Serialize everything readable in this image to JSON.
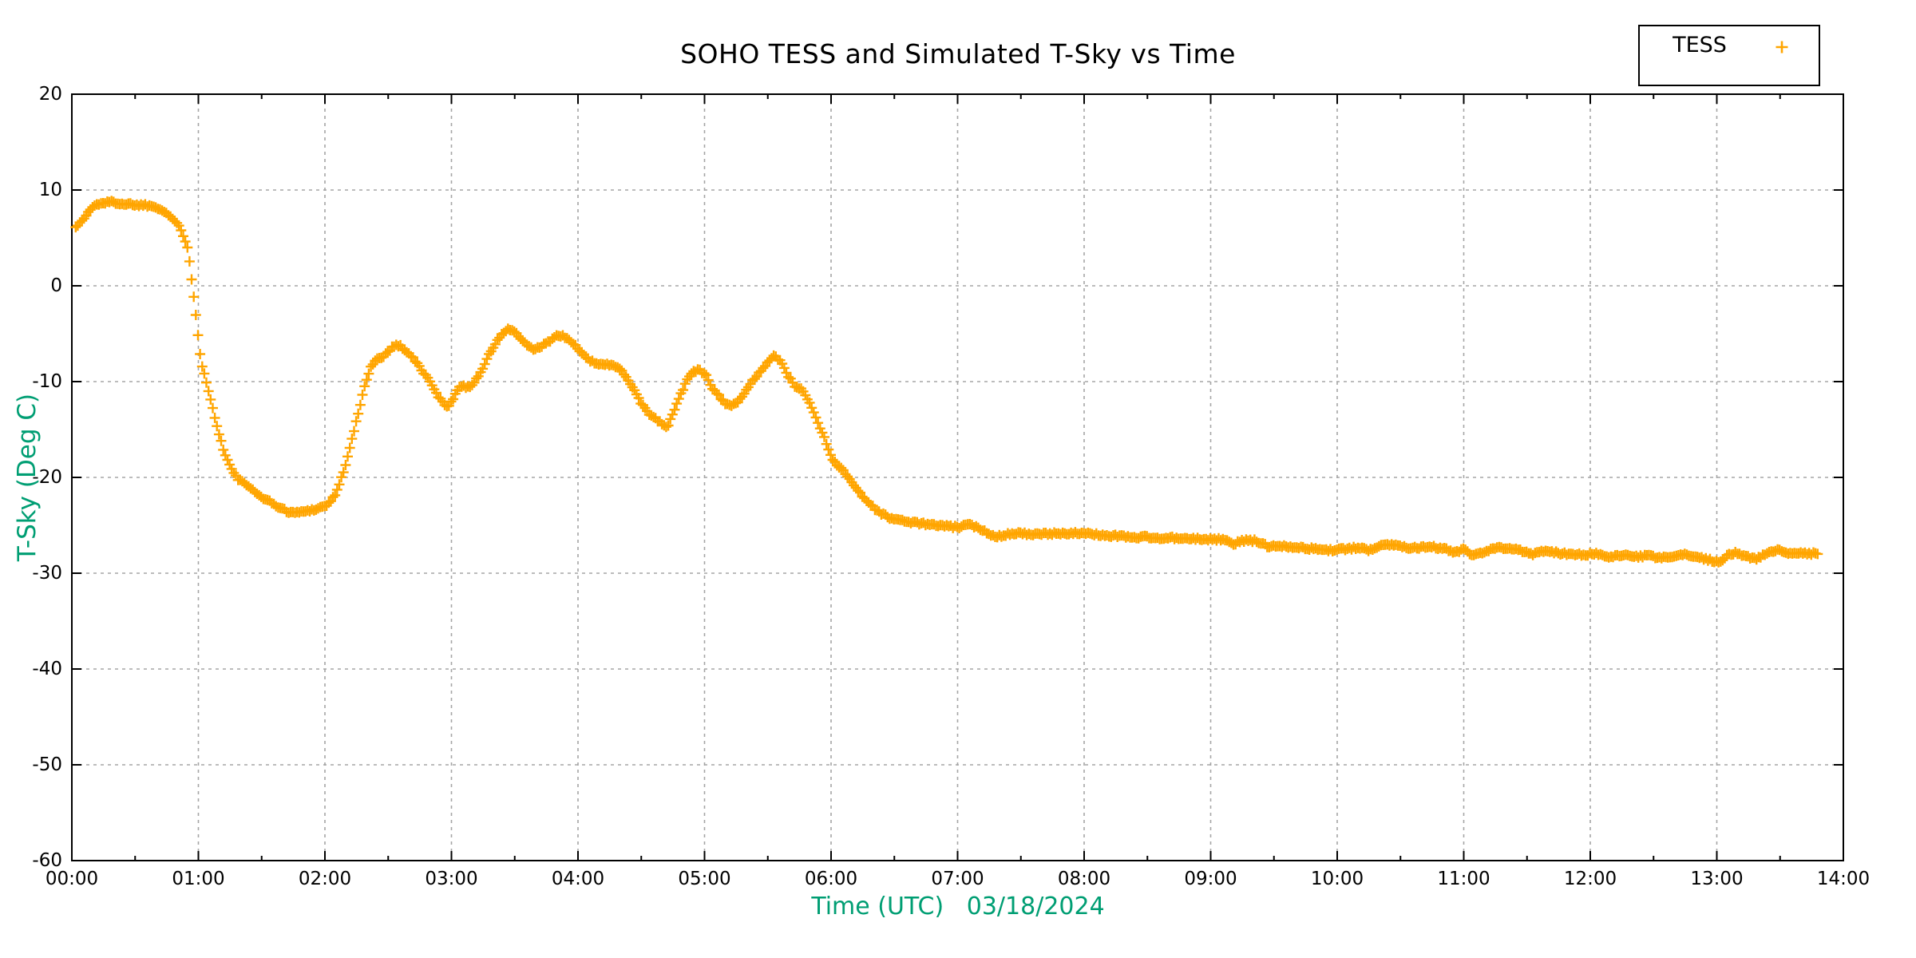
{
  "page": {
    "background": "#ffffff"
  },
  "chart": {
    "title": "SOHO TESS and Simulated T-Sky vs Time",
    "xlabel": "Time (UTC)   03/18/2024",
    "ylabel": "T-Sky (Deg C)",
    "legend": {
      "position": "top-right",
      "entries": [
        {
          "label": "TESS",
          "marker": "plus-icon",
          "color": "#FFA500"
        }
      ]
    },
    "colors": {
      "series": "#FFA500",
      "axis_labels": "#009E73",
      "grid": "#A5A5A5",
      "axis": "#000000",
      "tick_text": "#000000"
    }
  },
  "chart_data": {
    "type": "scatter",
    "title": "SOHO TESS and Simulated T-Sky vs Time",
    "xlabel": "Time (UTC)   03/18/2024",
    "ylabel": "T-Sky (Deg C)",
    "date_shown": "03/18/2024",
    "marker": "plus",
    "marker_color": "#FFA500",
    "grid": true,
    "legend_entries": [
      "TESS"
    ],
    "xlim_hours": [
      0,
      14
    ],
    "ylim": [
      -60,
      20
    ],
    "x_tick_labels": [
      "00:00",
      "01:00",
      "02:00",
      "03:00",
      "04:00",
      "05:00",
      "06:00",
      "07:00",
      "08:00",
      "09:00",
      "10:00",
      "11:00",
      "12:00",
      "13:00",
      "14:00"
    ],
    "x_minor_tick_every_hours": 0.5,
    "y_ticks": [
      20,
      10,
      0,
      -10,
      -20,
      -30,
      -40,
      -50,
      -60
    ],
    "sampling_minutes": 1,
    "scatter_jitter_degC": 0.13,
    "series": [
      {
        "name": "TESS",
        "color": "#FFA500",
        "keypoints_t_hours_v_degC": [
          [
            0.03,
            6.2
          ],
          [
            0.07,
            6.6
          ],
          [
            0.1,
            7.1
          ],
          [
            0.13,
            7.7
          ],
          [
            0.17,
            8.3
          ],
          [
            0.22,
            8.6
          ],
          [
            0.27,
            8.7
          ],
          [
            0.32,
            8.75
          ],
          [
            0.38,
            8.6
          ],
          [
            0.43,
            8.5
          ],
          [
            0.47,
            8.55
          ],
          [
            0.52,
            8.4
          ],
          [
            0.57,
            8.45
          ],
          [
            0.62,
            8.35
          ],
          [
            0.66,
            8.25
          ],
          [
            0.7,
            8.05
          ],
          [
            0.73,
            7.75
          ],
          [
            0.76,
            7.45
          ],
          [
            0.79,
            7.1
          ],
          [
            0.82,
            6.65
          ],
          [
            0.85,
            6.1
          ],
          [
            0.88,
            5.3
          ],
          [
            0.9,
            4.6
          ],
          [
            0.92,
            3.8
          ],
          [
            0.94,
            1.5
          ],
          [
            0.96,
            -0.7
          ],
          [
            0.98,
            -3.0
          ],
          [
            1.0,
            -5.5
          ],
          [
            1.02,
            -7.8
          ],
          [
            1.05,
            -9.4
          ],
          [
            1.08,
            -11.0
          ],
          [
            1.11,
            -12.6
          ],
          [
            1.14,
            -14.2
          ],
          [
            1.17,
            -15.8
          ],
          [
            1.2,
            -17.2
          ],
          [
            1.24,
            -18.5
          ],
          [
            1.28,
            -19.6
          ],
          [
            1.32,
            -20.3
          ],
          [
            1.36,
            -20.5
          ],
          [
            1.41,
            -21.2
          ],
          [
            1.46,
            -21.7
          ],
          [
            1.51,
            -22.1
          ],
          [
            1.56,
            -22.5
          ],
          [
            1.61,
            -22.9
          ],
          [
            1.66,
            -23.3
          ],
          [
            1.71,
            -23.55
          ],
          [
            1.76,
            -23.7
          ],
          [
            1.81,
            -23.6
          ],
          [
            1.86,
            -23.5
          ],
          [
            1.91,
            -23.35
          ],
          [
            1.96,
            -23.15
          ],
          [
            2.0,
            -23.0
          ],
          [
            2.04,
            -22.6
          ],
          [
            2.08,
            -21.8
          ],
          [
            2.12,
            -20.5
          ],
          [
            2.16,
            -18.8
          ],
          [
            2.2,
            -16.8
          ],
          [
            2.24,
            -14.6
          ],
          [
            2.28,
            -12.4
          ],
          [
            2.32,
            -10.2
          ],
          [
            2.36,
            -8.5
          ],
          [
            2.4,
            -7.7
          ],
          [
            2.45,
            -7.5
          ],
          [
            2.5,
            -6.8
          ],
          [
            2.55,
            -6.2
          ],
          [
            2.6,
            -6.3
          ],
          [
            2.65,
            -6.9
          ],
          [
            2.7,
            -7.6
          ],
          [
            2.76,
            -8.7
          ],
          [
            2.82,
            -9.8
          ],
          [
            2.88,
            -11.2
          ],
          [
            2.93,
            -12.2
          ],
          [
            2.97,
            -12.6
          ],
          [
            3.01,
            -11.8
          ],
          [
            3.05,
            -10.8
          ],
          [
            3.09,
            -10.4
          ],
          [
            3.13,
            -10.6
          ],
          [
            3.17,
            -10.3
          ],
          [
            3.21,
            -9.4
          ],
          [
            3.25,
            -8.5
          ],
          [
            3.29,
            -7.4
          ],
          [
            3.33,
            -6.4
          ],
          [
            3.37,
            -5.6
          ],
          [
            3.41,
            -4.9
          ],
          [
            3.45,
            -4.5
          ],
          [
            3.49,
            -4.7
          ],
          [
            3.54,
            -5.4
          ],
          [
            3.59,
            -6.2
          ],
          [
            3.64,
            -6.6
          ],
          [
            3.69,
            -6.5
          ],
          [
            3.74,
            -6.1
          ],
          [
            3.79,
            -5.6
          ],
          [
            3.84,
            -5.2
          ],
          [
            3.89,
            -5.3
          ],
          [
            3.94,
            -5.8
          ],
          [
            4.0,
            -6.5
          ],
          [
            4.05,
            -7.4
          ],
          [
            4.1,
            -7.9
          ],
          [
            4.16,
            -8.1
          ],
          [
            4.22,
            -8.25
          ],
          [
            4.28,
            -8.35
          ],
          [
            4.34,
            -8.6
          ],
          [
            4.4,
            -10.0
          ],
          [
            4.45,
            -10.9
          ],
          [
            4.5,
            -12.3
          ],
          [
            4.56,
            -13.3
          ],
          [
            4.62,
            -14.0
          ],
          [
            4.67,
            -14.5
          ],
          [
            4.71,
            -14.7
          ],
          [
            4.75,
            -13.3
          ],
          [
            4.79,
            -12.0
          ],
          [
            4.83,
            -10.8
          ],
          [
            4.87,
            -9.5
          ],
          [
            4.91,
            -9.0
          ],
          [
            4.96,
            -8.8
          ],
          [
            5.01,
            -9.3
          ],
          [
            5.06,
            -10.6
          ],
          [
            5.11,
            -11.4
          ],
          [
            5.16,
            -12.2
          ],
          [
            5.21,
            -12.5
          ],
          [
            5.26,
            -12.3
          ],
          [
            5.31,
            -11.3
          ],
          [
            5.36,
            -10.2
          ],
          [
            5.41,
            -9.5
          ],
          [
            5.46,
            -8.6
          ],
          [
            5.51,
            -7.7
          ],
          [
            5.56,
            -7.3
          ],
          [
            5.61,
            -8.1
          ],
          [
            5.66,
            -9.4
          ],
          [
            5.71,
            -10.4
          ],
          [
            5.76,
            -10.7
          ],
          [
            5.81,
            -11.7
          ],
          [
            5.86,
            -13.1
          ],
          [
            5.91,
            -14.7
          ],
          [
            5.96,
            -16.3
          ],
          [
            6.0,
            -17.8
          ],
          [
            6.05,
            -18.7
          ],
          [
            6.1,
            -19.4
          ],
          [
            6.15,
            -20.2
          ],
          [
            6.2,
            -21.1
          ],
          [
            6.25,
            -22.0
          ],
          [
            6.3,
            -22.7
          ],
          [
            6.35,
            -23.3
          ],
          [
            6.4,
            -23.8
          ],
          [
            6.46,
            -24.2
          ],
          [
            6.53,
            -24.45
          ],
          [
            6.6,
            -24.6
          ],
          [
            6.7,
            -24.8
          ],
          [
            6.8,
            -24.95
          ],
          [
            6.9,
            -25.1
          ],
          [
            7.0,
            -25.2
          ],
          [
            7.1,
            -24.95
          ],
          [
            7.2,
            -25.5
          ],
          [
            7.3,
            -26.2
          ],
          [
            7.4,
            -25.9
          ],
          [
            7.5,
            -25.8
          ],
          [
            7.6,
            -26.0
          ],
          [
            7.7,
            -25.9
          ],
          [
            7.8,
            -25.85
          ],
          [
            7.9,
            -25.8
          ],
          [
            8.0,
            -25.9
          ],
          [
            8.1,
            -25.95
          ],
          [
            8.2,
            -26.1
          ],
          [
            8.3,
            -26.1
          ],
          [
            8.4,
            -26.3
          ],
          [
            8.5,
            -26.2
          ],
          [
            8.6,
            -26.4
          ],
          [
            8.7,
            -26.3
          ],
          [
            8.8,
            -26.45
          ],
          [
            8.9,
            -26.4
          ],
          [
            9.0,
            -26.5
          ],
          [
            9.1,
            -26.45
          ],
          [
            9.17,
            -27.0
          ],
          [
            9.25,
            -26.6
          ],
          [
            9.35,
            -26.6
          ],
          [
            9.45,
            -27.2
          ],
          [
            9.55,
            -27.1
          ],
          [
            9.65,
            -27.25
          ],
          [
            9.75,
            -27.4
          ],
          [
            9.85,
            -27.5
          ],
          [
            9.95,
            -27.6
          ],
          [
            10.05,
            -27.5
          ],
          [
            10.15,
            -27.35
          ],
          [
            10.25,
            -27.6
          ],
          [
            10.35,
            -27.0
          ],
          [
            10.45,
            -27.05
          ],
          [
            10.55,
            -27.3
          ],
          [
            10.65,
            -27.3
          ],
          [
            10.75,
            -27.25
          ],
          [
            10.85,
            -27.45
          ],
          [
            10.92,
            -27.9
          ],
          [
            11.0,
            -27.5
          ],
          [
            11.07,
            -28.2
          ],
          [
            11.15,
            -27.9
          ],
          [
            11.25,
            -27.35
          ],
          [
            11.35,
            -27.45
          ],
          [
            11.45,
            -27.6
          ],
          [
            11.55,
            -28.0
          ],
          [
            11.65,
            -27.6
          ],
          [
            11.75,
            -27.9
          ],
          [
            11.85,
            -28.0
          ],
          [
            11.95,
            -28.1
          ],
          [
            12.05,
            -27.95
          ],
          [
            12.15,
            -28.4
          ],
          [
            12.25,
            -28.1
          ],
          [
            12.35,
            -28.3
          ],
          [
            12.45,
            -28.2
          ],
          [
            12.55,
            -28.4
          ],
          [
            12.65,
            -28.25
          ],
          [
            12.75,
            -28.1
          ],
          [
            12.85,
            -28.3
          ],
          [
            12.95,
            -28.65
          ],
          [
            13.02,
            -28.8
          ],
          [
            13.08,
            -28.2
          ],
          [
            13.15,
            -27.85
          ],
          [
            13.25,
            -28.3
          ],
          [
            13.32,
            -28.5
          ],
          [
            13.42,
            -27.75
          ],
          [
            13.5,
            -27.6
          ],
          [
            13.58,
            -28.0
          ],
          [
            13.65,
            -27.9
          ],
          [
            13.72,
            -28.0
          ],
          [
            13.8,
            -27.9
          ]
        ]
      }
    ]
  }
}
